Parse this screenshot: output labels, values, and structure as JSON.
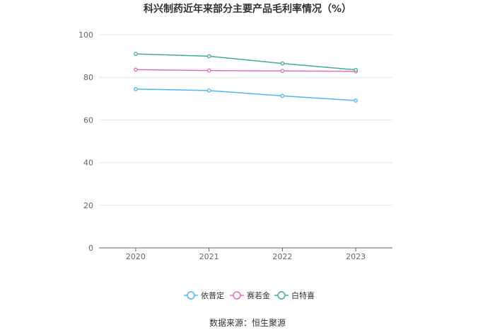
{
  "chart_data": {
    "type": "line",
    "title": "科兴制药近年来部分主要产品毛利率情况（%）",
    "xlabel": "",
    "ylabel": "",
    "categories": [
      "2020",
      "2021",
      "2022",
      "2023"
    ],
    "ylim": [
      0,
      100
    ],
    "yticks": [
      0,
      20,
      40,
      60,
      80,
      100
    ],
    "grid": true,
    "legend_position": "bottom",
    "series": [
      {
        "name": "依普定",
        "color": "#4db8f0",
        "values": [
          74.5,
          73.8,
          71.3,
          69.1
        ]
      },
      {
        "name": "赛若金",
        "color": "#e26fb5",
        "values": [
          83.6,
          83.2,
          83.0,
          82.8
        ]
      },
      {
        "name": "白特喜",
        "color": "#41b18f",
        "values": [
          91.0,
          89.9,
          86.5,
          83.5
        ]
      }
    ]
  },
  "footer": {
    "source": "数据来源：恒生聚源"
  }
}
